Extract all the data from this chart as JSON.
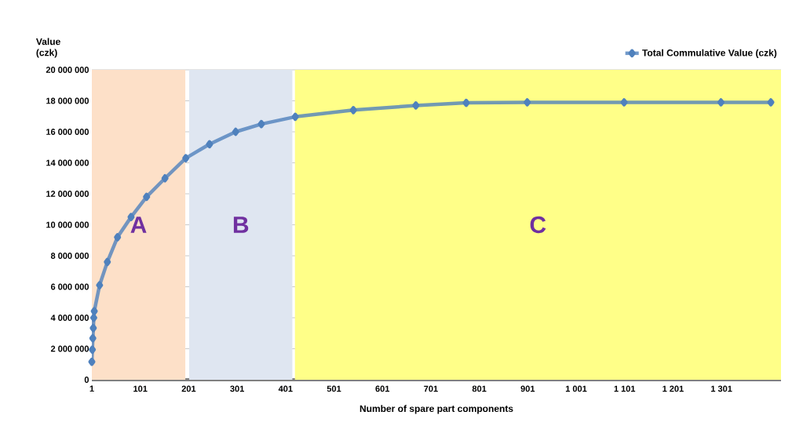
{
  "chart_data": {
    "type": "line",
    "xlabel": "Number of spare part components",
    "ylabel": "Value (czk)",
    "x": [
      1,
      2,
      3,
      4,
      5,
      6,
      17,
      33,
      54,
      82,
      114,
      152,
      195,
      244,
      298,
      351,
      421,
      541,
      670,
      774,
      900,
      1100,
      1300,
      1403
    ],
    "series": [
      {
        "name": "Total Commulative Value (czk)",
        "color": "#4f81bd",
        "values": [
          1160000,
          1940000,
          2680000,
          3340000,
          4000000,
          4420000,
          6100000,
          7600000,
          9200000,
          10500000,
          11800000,
          13000000,
          14300000,
          15200000,
          16000000,
          16500000,
          16970000,
          17400000,
          17700000,
          17870000,
          17900000,
          17900000,
          17900000,
          17900000
        ]
      }
    ],
    "xlim": [
      1,
      1424
    ],
    "xticks": [
      1,
      101,
      201,
      301,
      401,
      501,
      601,
      701,
      801,
      901,
      {
        "value": 1001,
        "label": "1 001"
      },
      {
        "value": 1101,
        "label": "1 101"
      },
      {
        "value": 1201,
        "label": "1 201"
      },
      {
        "value": 1301,
        "label": "1 301"
      }
    ],
    "ylim": [
      0,
      20000000
    ],
    "yticks": [
      0,
      {
        "value": 2000000,
        "label": "2 000 000"
      },
      {
        "value": 4000000,
        "label": "4 000 000"
      },
      {
        "value": 6000000,
        "label": "6 000 000"
      },
      {
        "value": 8000000,
        "label": "8 000 000"
      },
      {
        "value": 10000000,
        "label": "10 000 000"
      },
      {
        "value": 12000000,
        "label": "12 000 000"
      },
      {
        "value": 14000000,
        "label": "14 000 000"
      },
      {
        "value": 16000000,
        "label": "16 000 000"
      },
      {
        "value": 18000000,
        "label": "18 000 000"
      },
      {
        "value": 20000000,
        "label": "20 000 000"
      }
    ],
    "bands": [
      {
        "axis": "x",
        "from": 1,
        "to": 194,
        "label": "A",
        "color": "#fde0c8"
      },
      {
        "axis": "x",
        "from": 202,
        "to": 415,
        "label": "B",
        "color": "#dfe6f1"
      },
      {
        "axis": "x",
        "from": 420,
        "to": 1424,
        "label": "C",
        "color": "#ffff88"
      }
    ],
    "grid": "y",
    "legend": "top right",
    "marker": "diamond",
    "line_style": "solid"
  }
}
